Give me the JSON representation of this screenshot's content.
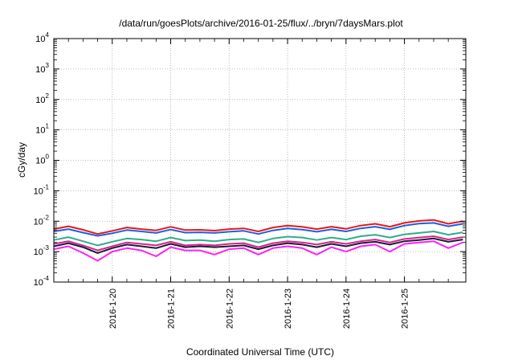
{
  "chart_data": {
    "type": "line",
    "title": "/data/run/goesPlots/archive/2016-01-25/flux/../bryn/7daysMars.plot",
    "xlabel": "Coordinated Universal Time (UTC)",
    "ylabel": "cGy/day",
    "yscale": "log",
    "ylim": [
      0.0001,
      10000
    ],
    "y_ticks": [
      {
        "base": "10",
        "exp": "-4"
      },
      {
        "base": "10",
        "exp": "-3"
      },
      {
        "base": "10",
        "exp": "-2"
      },
      {
        "base": "10",
        "exp": "-1"
      },
      {
        "base": "10",
        "exp": "0"
      },
      {
        "base": "10",
        "exp": "1"
      },
      {
        "base": "10",
        "exp": "2"
      },
      {
        "base": "10",
        "exp": "3"
      },
      {
        "base": "10",
        "exp": "4"
      }
    ],
    "xlim_days": [
      0,
      7.05
    ],
    "x_ticks": [
      {
        "label": "2016-1-20",
        "day": 1.0
      },
      {
        "label": "2016-1-21",
        "day": 2.0
      },
      {
        "label": "2016-1-22",
        "day": 3.0
      },
      {
        "label": "2016-1-23",
        "day": 4.0
      },
      {
        "label": "2016-1-24",
        "day": 5.0
      },
      {
        "label": "2016-1-25",
        "day": 6.0
      }
    ],
    "grid": true,
    "legend": "none",
    "x_days": [
      0,
      0.25,
      0.5,
      0.75,
      1,
      1.25,
      1.5,
      1.75,
      2,
      2.25,
      2.5,
      2.75,
      3,
      3.25,
      3.5,
      3.75,
      4,
      4.25,
      4.5,
      4.75,
      5,
      5.25,
      5.5,
      5.75,
      6,
      6.25,
      6.5,
      6.75,
      7
    ],
    "series": [
      {
        "color": "#e41a1c",
        "values": [
          0.0055,
          0.0068,
          0.0052,
          0.0038,
          0.0048,
          0.0062,
          0.0055,
          0.005,
          0.0065,
          0.0051,
          0.0052,
          0.0049,
          0.0055,
          0.0058,
          0.0046,
          0.0062,
          0.0072,
          0.0065,
          0.0055,
          0.0066,
          0.0056,
          0.0072,
          0.0082,
          0.0066,
          0.0088,
          0.0102,
          0.011,
          0.0082,
          0.01
        ]
      },
      {
        "color": "#1f5fe0",
        "values": [
          0.0046,
          0.0055,
          0.0042,
          0.0033,
          0.004,
          0.0051,
          0.0046,
          0.0041,
          0.0053,
          0.0042,
          0.0043,
          0.0041,
          0.0045,
          0.0048,
          0.0038,
          0.005,
          0.0058,
          0.0053,
          0.0045,
          0.0054,
          0.0046,
          0.0058,
          0.0066,
          0.0054,
          0.0072,
          0.0083,
          0.0088,
          0.0068,
          0.0082
        ]
      },
      {
        "color": "#2ab08a",
        "values": [
          0.0024,
          0.003,
          0.0022,
          0.0016,
          0.0021,
          0.0027,
          0.0025,
          0.0022,
          0.0029,
          0.0023,
          0.0024,
          0.0022,
          0.0025,
          0.0026,
          0.002,
          0.0027,
          0.0031,
          0.0029,
          0.0024,
          0.0029,
          0.0025,
          0.0032,
          0.0036,
          0.0029,
          0.0037,
          0.0041,
          0.0046,
          0.0036,
          0.0043
        ]
      },
      {
        "color": "#dd2288",
        "values": [
          0.0018,
          0.0022,
          0.0016,
          0.0011,
          0.0015,
          0.002,
          0.0018,
          0.0016,
          0.0021,
          0.0016,
          0.0017,
          0.0016,
          0.0018,
          0.0019,
          0.0014,
          0.0019,
          0.0022,
          0.002,
          0.0017,
          0.0021,
          0.0018,
          0.0022,
          0.0025,
          0.002,
          0.0026,
          0.0029,
          0.0032,
          0.0025,
          0.003
        ]
      },
      {
        "color": "#1a1a40",
        "values": [
          0.0015,
          0.0019,
          0.0014,
          0.0009,
          0.0013,
          0.0017,
          0.0015,
          0.0013,
          0.0018,
          0.0014,
          0.0015,
          0.0014,
          0.0015,
          0.0016,
          0.0012,
          0.0016,
          0.0019,
          0.0017,
          0.0014,
          0.0018,
          0.0015,
          0.0019,
          0.0021,
          0.0017,
          0.0022,
          0.0024,
          0.0027,
          0.0021,
          0.0025
        ]
      },
      {
        "color": "#ff22ee",
        "values": [
          0.0012,
          0.0015,
          0.0009,
          0.0005,
          0.001,
          0.0013,
          0.0011,
          0.0007,
          0.0014,
          0.0011,
          0.0011,
          0.0008,
          0.0012,
          0.0013,
          0.0008,
          0.0013,
          0.0015,
          0.0013,
          0.0008,
          0.0014,
          0.001,
          0.0015,
          0.0017,
          0.001,
          0.0018,
          0.002,
          0.0022,
          0.0013,
          0.002
        ]
      }
    ]
  }
}
